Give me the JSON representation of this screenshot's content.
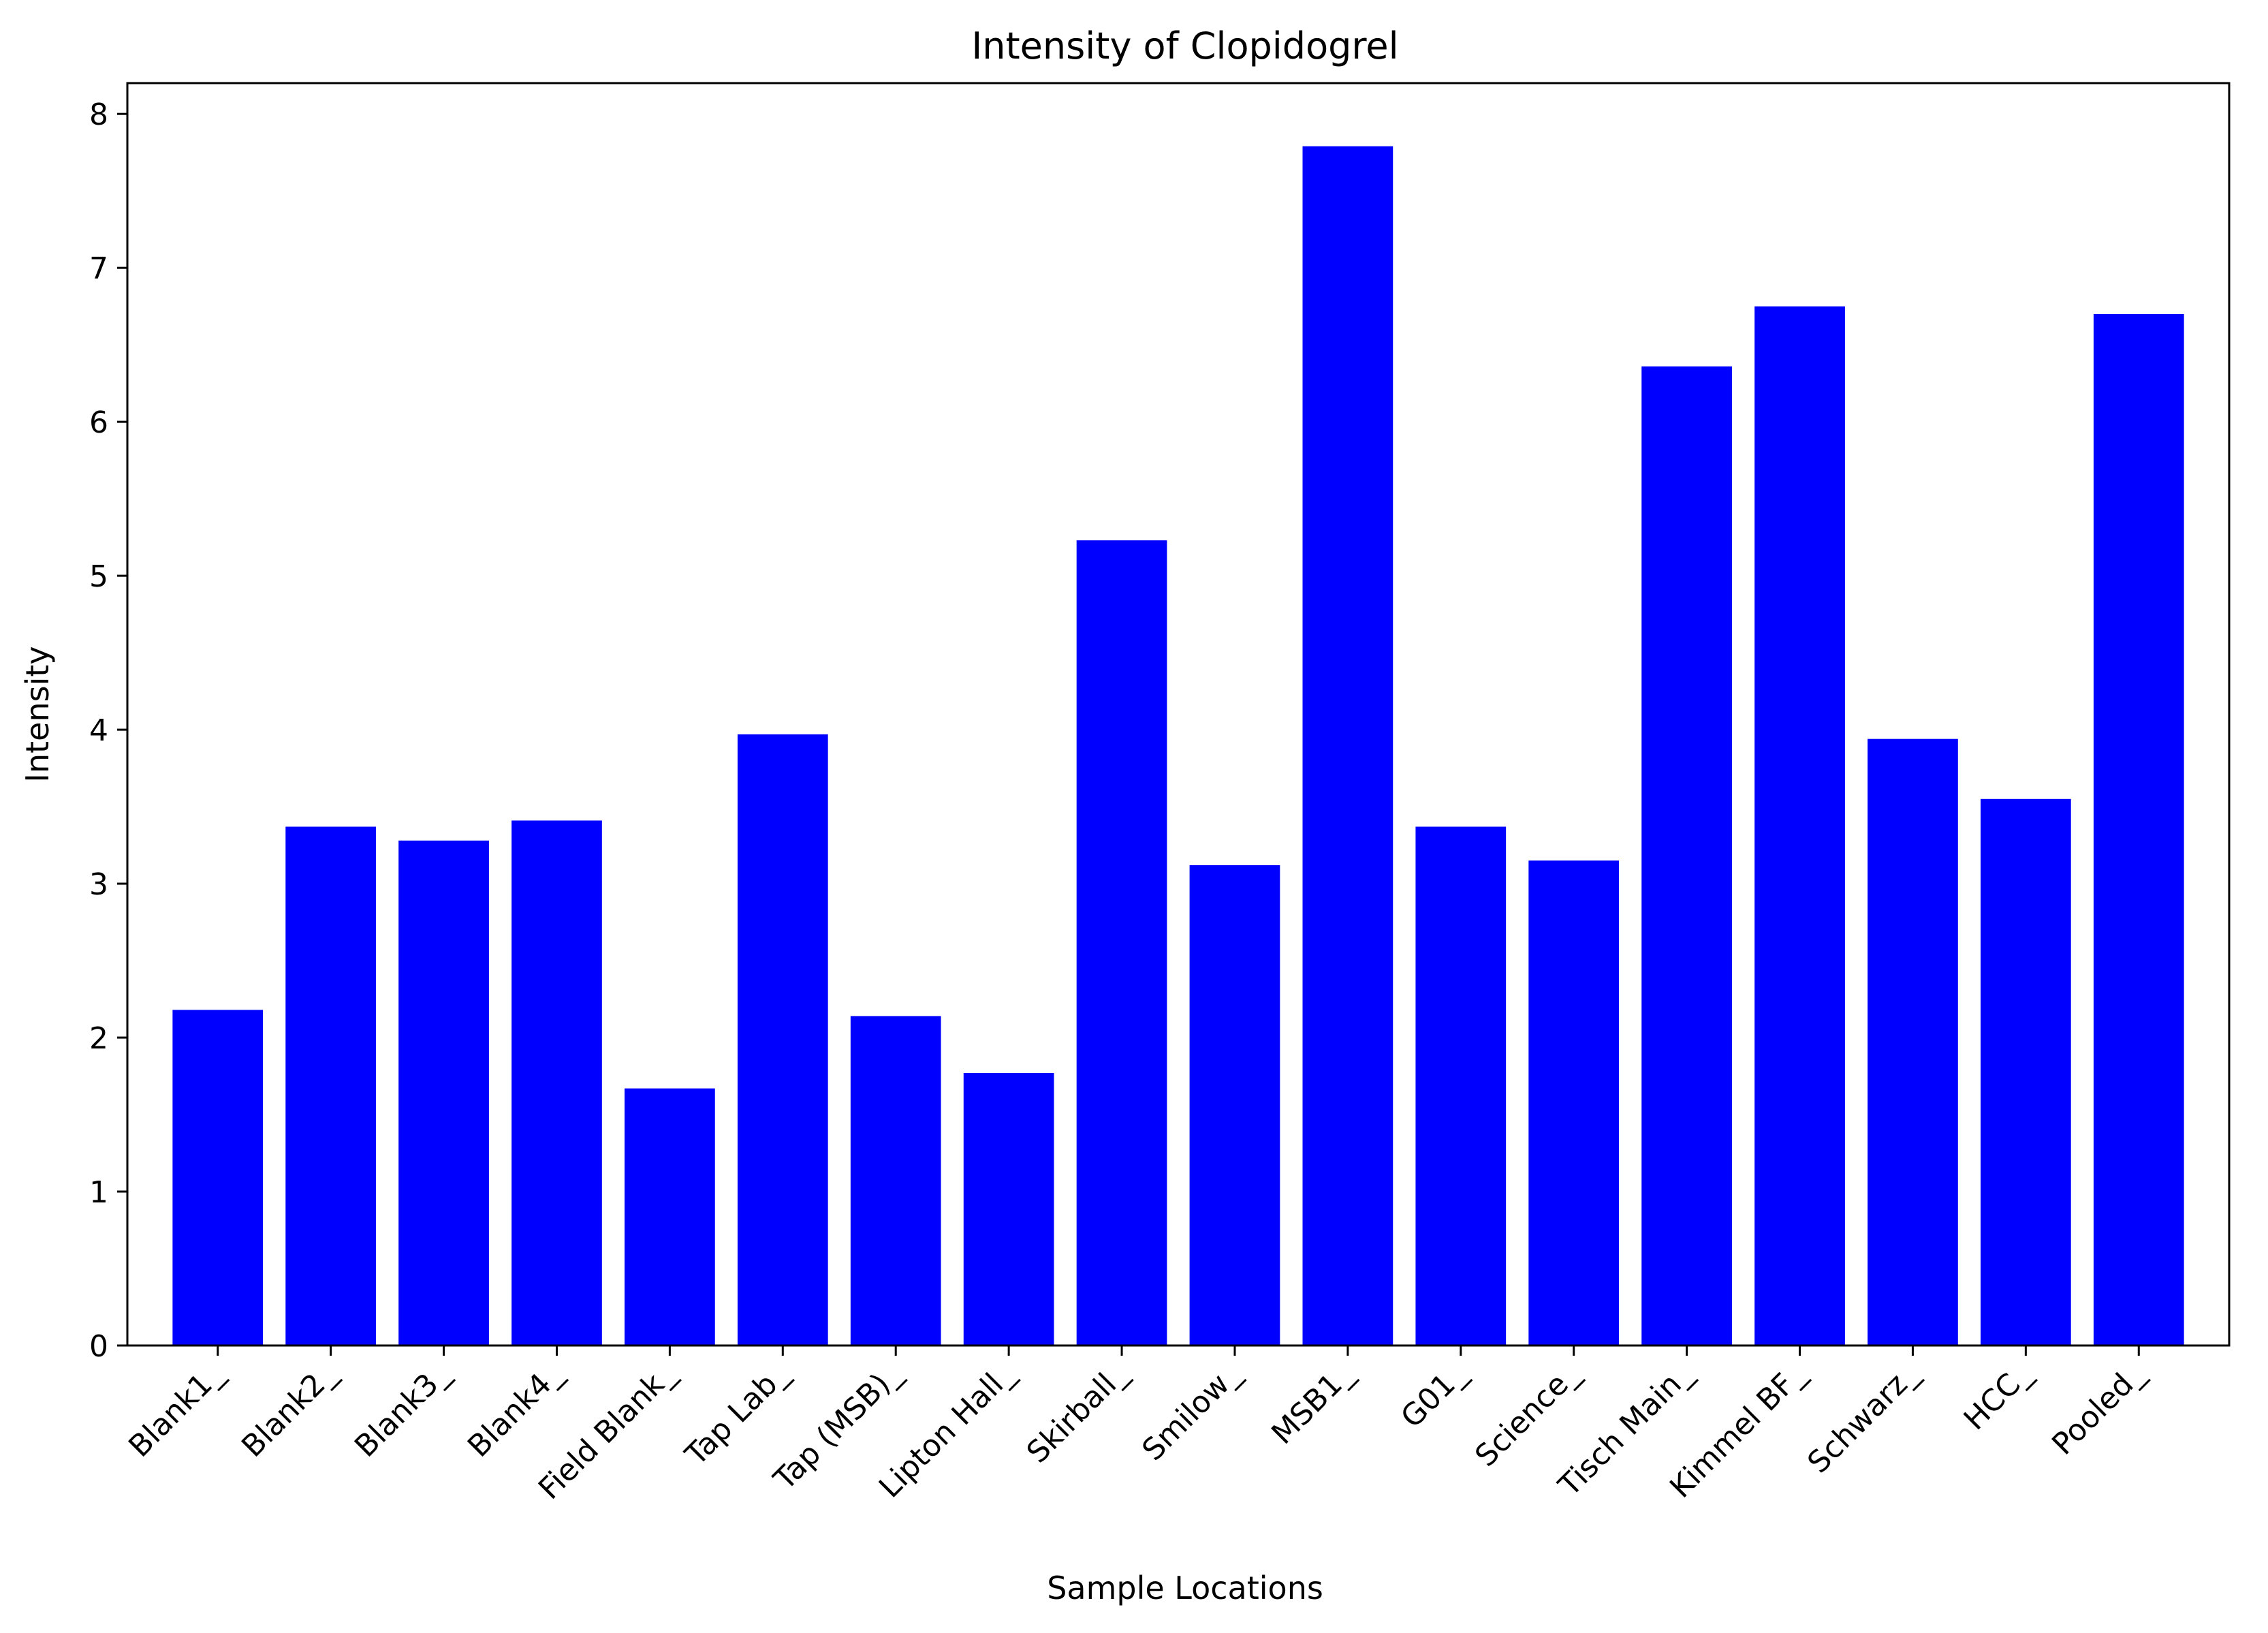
{
  "chart_data": {
    "type": "bar",
    "title": "Intensity of Clopidogrel",
    "xlabel": "Sample Locations",
    "ylabel": "Intensity",
    "ylim": [
      0,
      8.2
    ],
    "yticks": [
      0,
      1,
      2,
      3,
      4,
      5,
      6,
      7,
      8
    ],
    "grid": false,
    "legend": "none",
    "bar_color": "#0000ff",
    "categories": [
      "Blank1_",
      "Blank2_",
      "Blank3_",
      "Blank4_",
      "Field Blank_",
      "Tap Lab_",
      "Tap (MSB)_",
      "Lipton Hall_",
      "Skirball_",
      "Smilow_",
      "MSB1_",
      "G01_",
      "Science_",
      "Tisch Main_",
      "Kimmel BF_",
      "Schwarz_",
      "HCC_",
      "Pooled_"
    ],
    "values": [
      2.18,
      3.37,
      3.28,
      3.41,
      1.67,
      3.97,
      2.14,
      1.77,
      5.23,
      3.12,
      7.79,
      3.37,
      3.15,
      6.36,
      6.75,
      3.94,
      3.55,
      6.7
    ]
  }
}
